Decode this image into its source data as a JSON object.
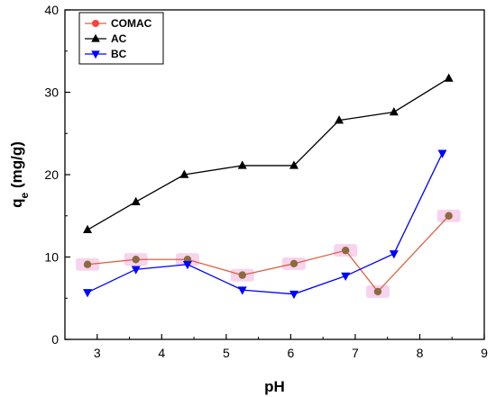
{
  "chart_data": {
    "type": "line",
    "title": "",
    "xlabel": "pH",
    "ylabel_main": "q",
    "ylabel_sub": "e",
    "ylabel_unit": " (mg/g)",
    "xlim": [
      2.5,
      9
    ],
    "ylim": [
      0,
      40
    ],
    "xticks": [
      3,
      4,
      5,
      6,
      7,
      8,
      9
    ],
    "yticks": [
      0,
      10,
      20,
      30,
      40
    ],
    "grid": false,
    "legend_position": "top-left",
    "series": [
      {
        "name": "COMAC",
        "marker": "circle",
        "line_color": "#e06040",
        "marker_color": "#8b6a3e",
        "highlight_color": "#f5c8e8",
        "x": [
          2.85,
          3.6,
          4.4,
          5.25,
          6.05,
          6.85,
          7.35,
          8.45
        ],
        "y": [
          9.1,
          9.7,
          9.7,
          7.8,
          9.2,
          10.8,
          5.8,
          15.0
        ]
      },
      {
        "name": "AC",
        "marker": "triangle-up",
        "line_color": "#000000",
        "marker_color": "#000000",
        "x": [
          2.85,
          3.6,
          4.35,
          5.25,
          6.05,
          6.75,
          7.6,
          8.45
        ],
        "y": [
          13.3,
          16.7,
          20.0,
          21.1,
          21.1,
          26.6,
          27.6,
          31.7
        ]
      },
      {
        "name": "BC",
        "marker": "triangle-down",
        "line_color": "#0000ff",
        "marker_color": "#0000ff",
        "x": [
          2.85,
          3.6,
          4.4,
          5.25,
          6.05,
          6.85,
          7.6,
          8.35
        ],
        "y": [
          5.7,
          8.5,
          9.1,
          6.0,
          5.5,
          7.7,
          10.4,
          22.6
        ]
      }
    ]
  }
}
